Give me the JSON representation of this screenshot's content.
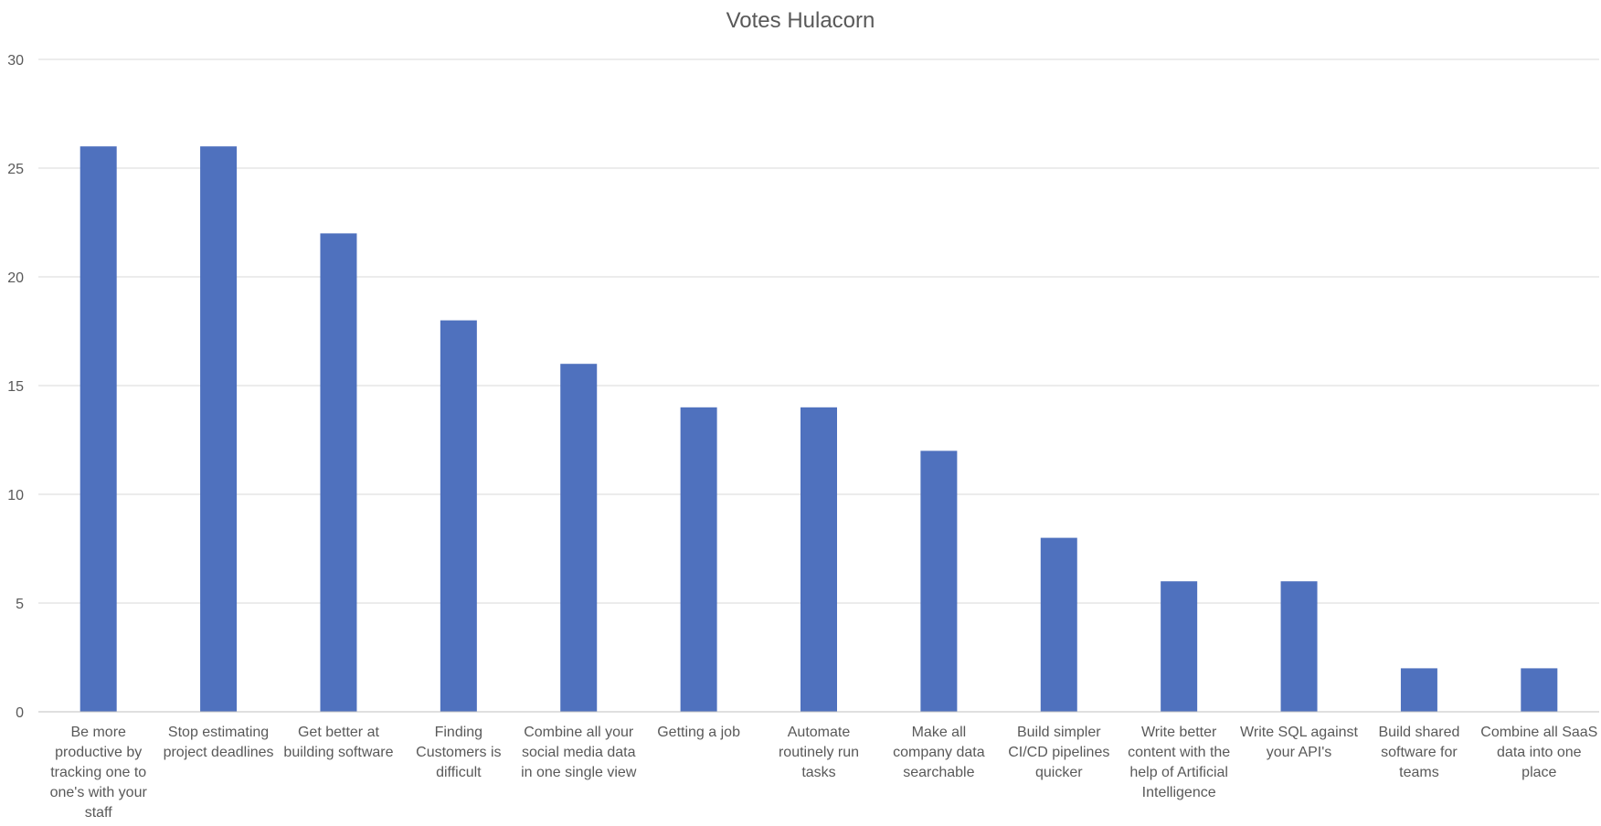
{
  "chart_data": {
    "type": "bar",
    "title": "Votes Hulacorn",
    "xlabel": "",
    "ylabel": "",
    "ylim": [
      0,
      30
    ],
    "yticks": [
      0,
      5,
      10,
      15,
      20,
      25,
      30
    ],
    "grid": true,
    "legend": "none",
    "bar_color": "#4f71be",
    "categories": [
      [
        "Be more",
        "productive by",
        "tracking one to",
        "one's with your",
        "staff"
      ],
      [
        "Stop estimating",
        "project deadlines"
      ],
      [
        "Get better at",
        "building software"
      ],
      [
        "Finding",
        "Customers is",
        "difficult"
      ],
      [
        "Combine all your",
        "social media data",
        "in one single view"
      ],
      [
        "Getting a job"
      ],
      [
        "Automate",
        "routinely run",
        "tasks"
      ],
      [
        "Make all",
        "company data",
        "searchable"
      ],
      [
        "Build simpler",
        "CI/CD pipelines",
        "quicker"
      ],
      [
        "Write better",
        "content with the",
        "help of Artificial",
        "Intelligence"
      ],
      [
        "Write SQL against",
        "your API's"
      ],
      [
        "Build shared",
        "software for",
        "teams"
      ],
      [
        "Combine all SaaS",
        "data into one",
        "place"
      ]
    ],
    "values": [
      26,
      26,
      22,
      18,
      16,
      14,
      14,
      12,
      8,
      6,
      6,
      2,
      2
    ]
  }
}
